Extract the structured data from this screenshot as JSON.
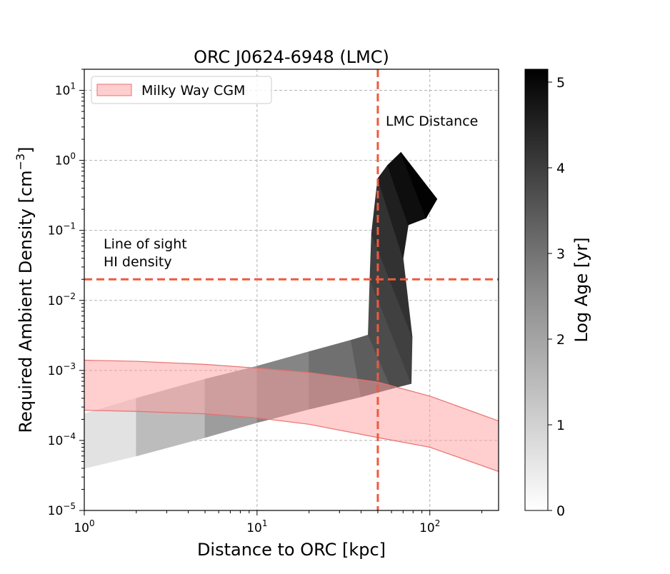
{
  "chart_data": {
    "type": "heatmap",
    "title": "ORC J0624-6948 (LMC)",
    "xlabel": "Distance to ORC [kpc]",
    "ylabel": "Required Ambient Density [cm$^{-3}$]",
    "ylabel_parts": {
      "base": "Required Ambient Density [cm",
      "sup": "−3",
      "end": "]"
    },
    "xscale": "log",
    "yscale": "log",
    "xlim": [
      1,
      250
    ],
    "ylim": [
      1e-05,
      20
    ],
    "grid": true,
    "x_ticks": [
      {
        "value": 1,
        "base": "10",
        "exp": "0"
      },
      {
        "value": 10,
        "base": "10",
        "exp": "1"
      },
      {
        "value": 100,
        "base": "10",
        "exp": "2"
      }
    ],
    "y_ticks": [
      {
        "value": 1e-05,
        "base": "10",
        "exp": "−5"
      },
      {
        "value": 0.0001,
        "base": "10",
        "exp": "−4"
      },
      {
        "value": 0.001,
        "base": "10",
        "exp": "−3"
      },
      {
        "value": 0.01,
        "base": "10",
        "exp": "−2"
      },
      {
        "value": 0.1,
        "base": "10",
        "exp": "−1"
      },
      {
        "value": 1,
        "base": "10",
        "exp": "0"
      },
      {
        "value": 10,
        "base": "10",
        "exp": "1"
      }
    ],
    "colorbar": {
      "label": "Log Age [yr]",
      "range": [
        0,
        5.15
      ],
      "ticks": [
        0,
        1,
        2,
        3,
        4,
        5
      ],
      "colormap": "Greys"
    },
    "legend": {
      "placement": "top-left",
      "entries": [
        {
          "name": "Milky Way CGM",
          "color": "#ff9e9e"
        }
      ]
    },
    "reference_lines": [
      {
        "orientation": "vertical",
        "value": 50,
        "label": "LMC Distance",
        "color": "#ee5a3e",
        "style": "dashed"
      },
      {
        "orientation": "horizontal",
        "value": 0.02,
        "label_lines": [
          "Line of sight",
          "HI density"
        ],
        "color": "#ee5a3e",
        "style": "dashed"
      }
    ],
    "cgm_band": {
      "name": "Milky Way CGM",
      "color": "#ff9e9e",
      "x": [
        1,
        2,
        5,
        10,
        20,
        50,
        100,
        250
      ],
      "upper": [
        0.0014,
        0.00135,
        0.00122,
        0.00108,
        0.00093,
        0.00068,
        0.00043,
        0.00019
      ],
      "lower": [
        0.00027,
        0.00026,
        0.00024,
        0.00021,
        0.00017,
        0.00011,
        8e-05,
        3.6e-05
      ]
    },
    "age_track": {
      "description": "required density vs distance colored by log age",
      "upper_edge": [
        {
          "x": 1,
          "y": 0.00024,
          "log_age": 0.0
        },
        {
          "x": 2,
          "y": 0.0004,
          "log_age": 0.8
        },
        {
          "x": 5,
          "y": 0.00075,
          "log_age": 1.6
        },
        {
          "x": 10,
          "y": 0.00115,
          "log_age": 2.1
        },
        {
          "x": 20,
          "y": 0.00185,
          "log_age": 2.6
        },
        {
          "x": 35,
          "y": 0.0027,
          "log_age": 3.0
        },
        {
          "x": 44,
          "y": 0.0032,
          "log_age": 3.3
        },
        {
          "x": 45,
          "y": 0.02,
          "log_age": 3.6
        },
        {
          "x": 46,
          "y": 0.09,
          "log_age": 3.9
        },
        {
          "x": 50,
          "y": 0.55,
          "log_age": 4.4
        },
        {
          "x": 57,
          "y": 0.85,
          "log_age": 4.8
        },
        {
          "x": 68,
          "y": 1.3,
          "log_age": 5.1
        },
        {
          "x": 110,
          "y": 0.28,
          "log_age": 5.1
        }
      ],
      "lower_edge": [
        {
          "x": 1,
          "y": 4e-05,
          "log_age": 0.0
        },
        {
          "x": 2,
          "y": 6e-05,
          "log_age": 0.8
        },
        {
          "x": 5,
          "y": 0.00011,
          "log_age": 1.6
        },
        {
          "x": 10,
          "y": 0.00018,
          "log_age": 2.1
        },
        {
          "x": 20,
          "y": 0.00028,
          "log_age": 2.6
        },
        {
          "x": 40,
          "y": 0.00042,
          "log_age": 3.0
        },
        {
          "x": 60,
          "y": 0.00055,
          "log_age": 3.5
        },
        {
          "x": 78,
          "y": 0.00065,
          "log_age": 3.8
        },
        {
          "x": 79,
          "y": 0.003,
          "log_age": 3.9
        },
        {
          "x": 70,
          "y": 0.04,
          "log_age": 4.2
        },
        {
          "x": 75,
          "y": 0.12,
          "log_age": 4.6
        },
        {
          "x": 95,
          "y": 0.15,
          "log_age": 4.9
        }
      ]
    }
  }
}
